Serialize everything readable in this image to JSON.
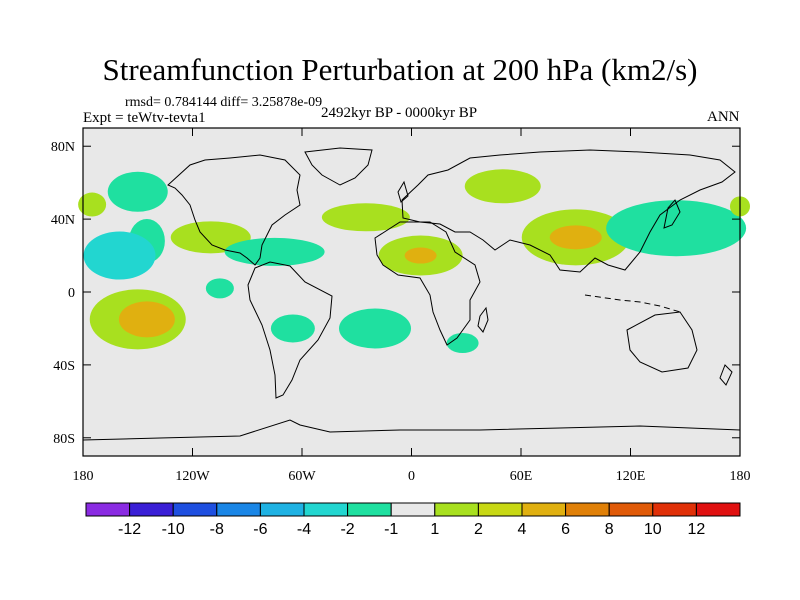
{
  "chart_data": {
    "type": "map",
    "title": "Streamfunction Perturbation at 200 hPa (km2/s)",
    "stats": "rmsd= 0.784144 diff= 3.25878e-09",
    "experiment": "Expt = teWtv-tevta1",
    "period": "2492kyr BP - 0000kyr BP",
    "season": "ANN",
    "x_ticks": [
      "180",
      "120W",
      "60W",
      "0",
      "60E",
      "120E",
      "180"
    ],
    "x_values": [
      -180,
      -120,
      -60,
      0,
      60,
      120,
      180
    ],
    "y_ticks": [
      "80N",
      "40N",
      "0",
      "40S",
      "80S"
    ],
    "y_values": [
      80,
      40,
      0,
      -40,
      -80
    ],
    "xlim": [
      -180,
      180
    ],
    "ylim": [
      -90,
      90
    ],
    "colorbar": {
      "labels": [
        "-12",
        "-10",
        "-8",
        "-6",
        "-4",
        "-2",
        "-1",
        "1",
        "2",
        "4",
        "6",
        "8",
        "10",
        "12"
      ],
      "colors": [
        "#8a2be2",
        "#3a1fd6",
        "#1e4fe0",
        "#1a86e6",
        "#1fb2e3",
        "#22d6d0",
        "#1fe0a0",
        "#e8e8e8",
        "#a8e01f",
        "#c8d814",
        "#e0b010",
        "#e08008",
        "#e05a08",
        "#e03008",
        "#e01010"
      ]
    },
    "anomalies": [
      {
        "lon": -150,
        "lat": 55,
        "level": -2
      },
      {
        "lon": -145,
        "lat": 28,
        "level": -2
      },
      {
        "lon": -160,
        "lat": 20,
        "level": -4
      },
      {
        "lon": -175,
        "lat": 48,
        "level": 1
      },
      {
        "lon": -150,
        "lat": -15,
        "level": 1
      },
      {
        "lon": -145,
        "lat": -15,
        "level": 4
      },
      {
        "lon": -110,
        "lat": 30,
        "level": 1
      },
      {
        "lon": -105,
        "lat": 2,
        "level": -2
      },
      {
        "lon": -75,
        "lat": 22,
        "level": -2
      },
      {
        "lon": -65,
        "lat": -20,
        "level": -2
      },
      {
        "lon": -25,
        "lat": 41,
        "level": 1
      },
      {
        "lon": -20,
        "lat": -20,
        "level": -2
      },
      {
        "lon": 5,
        "lat": 20,
        "level": 1
      },
      {
        "lon": 5,
        "lat": 20,
        "level": 4
      },
      {
        "lon": 50,
        "lat": 58,
        "level": 1
      },
      {
        "lon": 28,
        "lat": -28,
        "level": -2
      },
      {
        "lon": 90,
        "lat": 30,
        "level": 1
      },
      {
        "lon": 90,
        "lat": 30,
        "level": 4
      },
      {
        "lon": 145,
        "lat": 35,
        "level": -2
      },
      {
        "lon": 180,
        "lat": 47,
        "level": 1
      }
    ]
  }
}
